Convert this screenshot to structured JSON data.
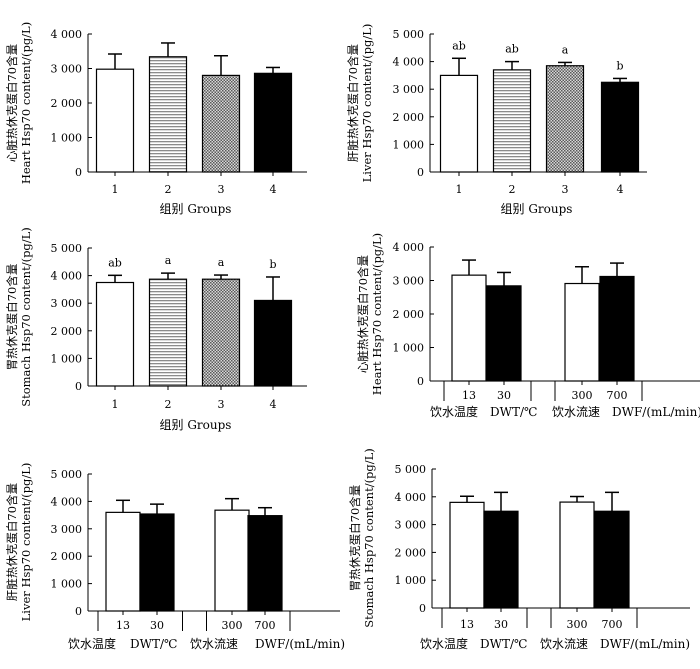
{
  "palette": {
    "open": "#ffffff",
    "stripe": "#9a9a9a",
    "dots": "#7a7a7a",
    "solid": "#000000",
    "ink": "#000000"
  },
  "chart_data": [
    {
      "id": "a",
      "type": "bar",
      "ylabel_cn": "心脏热休克蛋白70含量",
      "ylabel_en": "Heart Hsp70 content/(pg/L)",
      "xlabel": "组别  Groups",
      "categories": [
        "1",
        "2",
        "3",
        "4"
      ],
      "ylim": [
        0,
        4000
      ],
      "yticks": [
        "0",
        "1 000",
        "2 000",
        "3 000",
        "4 000"
      ],
      "yticks_values": [
        0,
        1000,
        2000,
        3000,
        4000
      ],
      "series": [
        {
          "values": [
            2980,
            3340,
            2800,
            2860
          ],
          "errors": [
            440,
            400,
            570,
            170
          ]
        }
      ],
      "fills": [
        "open",
        "stripe",
        "dots",
        "solid"
      ],
      "letters": [
        "",
        "",
        "",
        ""
      ]
    },
    {
      "id": "b",
      "type": "bar",
      "ylabel_cn": "肝脏热休克蛋白70含量",
      "ylabel_en": "Liver Hsp70 content/(pg/L)",
      "xlabel": "组别  Groups",
      "categories": [
        "1",
        "2",
        "3",
        "4"
      ],
      "ylim": [
        0,
        5000
      ],
      "yticks": [
        "0",
        "1 000",
        "2 000",
        "3 000",
        "4 000",
        "5 000"
      ],
      "yticks_values": [
        0,
        1000,
        2000,
        3000,
        4000,
        5000
      ],
      "series": [
        {
          "values": [
            3500,
            3700,
            3850,
            3250
          ],
          "errors": [
            620,
            300,
            120,
            140
          ]
        }
      ],
      "fills": [
        "open",
        "stripe",
        "dots",
        "solid"
      ],
      "letters": [
        "ab",
        "ab",
        "a",
        "b"
      ]
    },
    {
      "id": "c",
      "type": "bar",
      "ylabel_cn": "胃热休克蛋白70含量",
      "ylabel_en": "Stomach Hsp70 content/(pg/L)",
      "xlabel": "组别  Groups",
      "categories": [
        "1",
        "2",
        "3",
        "4"
      ],
      "ylim": [
        0,
        5000
      ],
      "yticks": [
        "0",
        "1 000",
        "2 000",
        "3 000",
        "4 000",
        "5 000"
      ],
      "yticks_values": [
        0,
        1000,
        2000,
        3000,
        4000,
        5000
      ],
      "series": [
        {
          "values": [
            3750,
            3870,
            3870,
            3100
          ],
          "errors": [
            260,
            220,
            150,
            850
          ]
        }
      ],
      "fills": [
        "open",
        "stripe",
        "dots",
        "solid"
      ],
      "letters": [
        "ab",
        "a",
        "a",
        "b"
      ]
    },
    {
      "id": "d",
      "type": "bar",
      "ylabel_cn": "心脏热休克蛋白70含量",
      "ylabel_en": "Heart Hsp70 content/(pg/L)",
      "categories": [
        "13",
        "30",
        "300",
        "700"
      ],
      "ylim": [
        0,
        4000
      ],
      "yticks": [
        "0",
        "1 000",
        "2 000",
        "3 000",
        "4 000"
      ],
      "yticks_values": [
        0,
        1000,
        2000,
        3000,
        4000
      ],
      "series": [
        {
          "values": [
            3160,
            2840,
            2910,
            3120
          ],
          "errors": [
            450,
            400,
            500,
            400
          ]
        }
      ],
      "fills": [
        "open",
        "solid",
        "open",
        "solid"
      ],
      "letters": [
        "",
        "",
        "",
        ""
      ],
      "group_labels": [
        {
          "cn": "饮水温度",
          "en": "DWT/℃"
        },
        {
          "cn": "饮水流速",
          "en": "DWF/(mL/min)"
        }
      ]
    },
    {
      "id": "e",
      "type": "bar",
      "ylabel_cn": "肝脏热休克蛋白70含量",
      "ylabel_en": "Liver Hsp70 content/(pg/L)",
      "categories": [
        "13",
        "30",
        "300",
        "700"
      ],
      "ylim": [
        0,
        5000
      ],
      "yticks": [
        "0",
        "1 000",
        "2 000",
        "3 000",
        "4 000",
        "5 000"
      ],
      "yticks_values": [
        0,
        1000,
        2000,
        3000,
        4000,
        5000
      ],
      "series": [
        {
          "values": [
            3600,
            3540,
            3680,
            3480
          ],
          "errors": [
            440,
            360,
            420,
            290
          ]
        }
      ],
      "fills": [
        "open",
        "solid",
        "open",
        "solid"
      ],
      "letters": [
        "",
        "",
        "",
        ""
      ],
      "group_labels": [
        {
          "cn": "饮水温度",
          "en": "DWT/℃"
        },
        {
          "cn": "饮水流速",
          "en": "DWF/(mL/min)"
        }
      ]
    },
    {
      "id": "f",
      "type": "bar",
      "ylabel_cn": "胃热休克蛋白70含量",
      "ylabel_en": "Stomach Hsp70 content/(pg/L)",
      "categories": [
        "13",
        "30",
        "300",
        "700"
      ],
      "ylim": [
        0,
        5000
      ],
      "yticks": [
        "0",
        "1 000",
        "2 000",
        "3 000",
        "4 000",
        "5 000"
      ],
      "yticks_values": [
        0,
        1000,
        2000,
        3000,
        4000,
        5000
      ],
      "series": [
        {
          "values": [
            3800,
            3480,
            3810,
            3480
          ],
          "errors": [
            220,
            680,
            200,
            680
          ]
        }
      ],
      "fills": [
        "open",
        "solid",
        "open",
        "solid"
      ],
      "letters": [
        "",
        "",
        "",
        ""
      ],
      "group_labels": [
        {
          "cn": "饮水温度",
          "en": "DWT/℃"
        },
        {
          "cn": "饮水流速",
          "en": "DWF/(mL/min)"
        }
      ]
    }
  ]
}
